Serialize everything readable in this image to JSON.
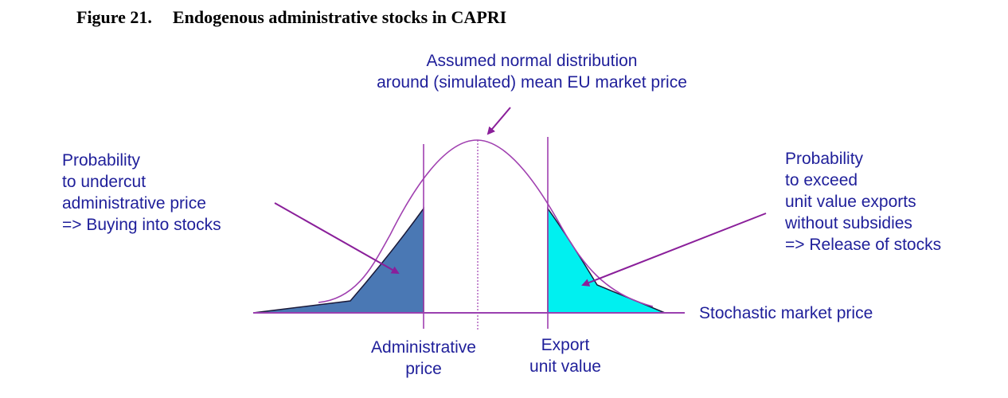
{
  "figure": {
    "number": "Figure 21.",
    "title": "Endogenous administrative stocks in CAPRI"
  },
  "annotations": {
    "top": {
      "line1": "Assumed normal distribution",
      "line2": "around (simulated) mean EU market price"
    },
    "left": {
      "line1": "Probability",
      "line2": "to undercut",
      "line3": "administrative price",
      "line4": "=> Buying into stocks"
    },
    "right": {
      "line1": "Probability",
      "line2": "to exceed",
      "line3": "unit value exports",
      "line4": "without subsidies",
      "line5": "=> Release of stocks"
    },
    "axis": "Stochastic market price",
    "admin_price": {
      "line1": "Administrative",
      "line2": "price"
    },
    "export_value": {
      "line1": "Export",
      "line2": "unit value"
    }
  },
  "colors": {
    "text": "#1f1f9a",
    "curve": "#a040b0",
    "arrow": "#8a1f9a",
    "left_tail_fill": "#4a78b4",
    "right_tail_fill": "#00f0f0",
    "outline": "#1a1a3a"
  }
}
